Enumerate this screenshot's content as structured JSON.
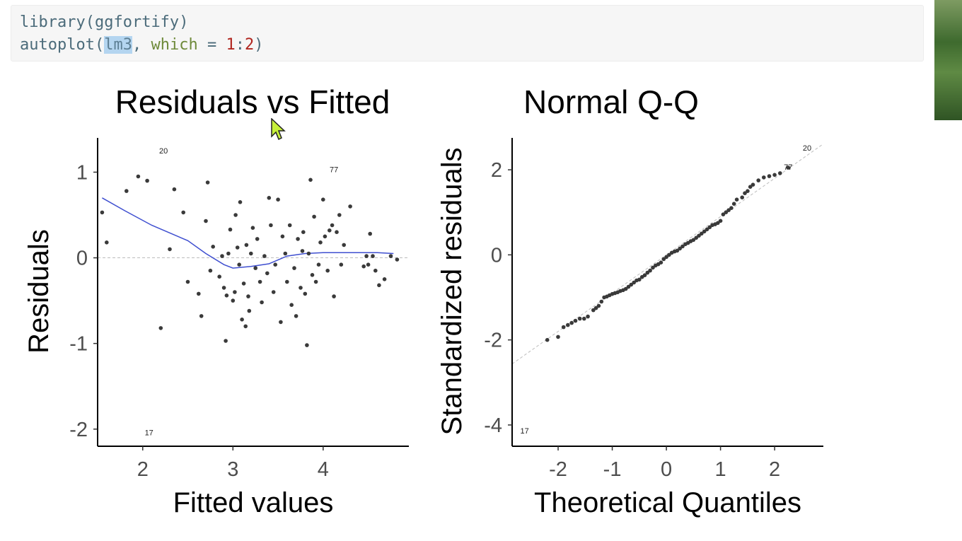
{
  "code": {
    "line1": {
      "func": "library",
      "open": "(",
      "arg": "ggfortify",
      "close": ")"
    },
    "line2": {
      "func": "autoplot",
      "open": "(",
      "arg": "lm3",
      "sep": ", ",
      "kw": "which",
      "eq": " = ",
      "n1": "1",
      "colon": ":",
      "n2": "2",
      "close": ")"
    }
  },
  "colors": {
    "points": "#3a3a3a",
    "smooth": "#3f4fd0",
    "refline": "#bdbdbd",
    "code_bg": "#f6f6f6"
  },
  "chart_data": [
    {
      "type": "scatter",
      "title": "Residuals vs Fitted",
      "xlabel": "Fitted values",
      "ylabel": "Residuals",
      "xlim": [
        1.5,
        4.95
      ],
      "ylim": [
        -2.2,
        1.4
      ],
      "xticks": [
        2,
        3,
        4
      ],
      "yticks": [
        -2,
        -1,
        0,
        1
      ],
      "grid": false,
      "hline": 0,
      "points": [
        [
          1.55,
          0.53
        ],
        [
          1.6,
          0.18
        ],
        [
          1.82,
          0.78
        ],
        [
          1.95,
          0.95
        ],
        [
          2.05,
          0.9
        ],
        [
          2.2,
          -0.82
        ],
        [
          2.3,
          0.1
        ],
        [
          2.35,
          0.8
        ],
        [
          2.45,
          0.53
        ],
        [
          2.5,
          -0.28
        ],
        [
          2.62,
          -0.42
        ],
        [
          2.65,
          -0.68
        ],
        [
          2.7,
          0.43
        ],
        [
          2.72,
          0.88
        ],
        [
          2.75,
          -0.15
        ],
        [
          2.78,
          0.13
        ],
        [
          2.85,
          -0.22
        ],
        [
          2.88,
          0.02
        ],
        [
          2.9,
          -0.35
        ],
        [
          2.92,
          -0.97
        ],
        [
          2.93,
          -0.44
        ],
        [
          2.95,
          0.05
        ],
        [
          2.97,
          0.33
        ],
        [
          3.0,
          -0.5
        ],
        [
          3.02,
          -0.4
        ],
        [
          3.03,
          0.5
        ],
        [
          3.05,
          0.12
        ],
        [
          3.07,
          -0.08
        ],
        [
          3.08,
          0.65
        ],
        [
          3.1,
          -0.72
        ],
        [
          3.12,
          -0.3
        ],
        [
          3.14,
          -0.8
        ],
        [
          3.15,
          0.15
        ],
        [
          3.17,
          -0.45
        ],
        [
          3.18,
          -0.62
        ],
        [
          3.2,
          0.05
        ],
        [
          3.22,
          0.35
        ],
        [
          3.25,
          -0.12
        ],
        [
          3.27,
          0.22
        ],
        [
          3.3,
          -0.28
        ],
        [
          3.32,
          -0.52
        ],
        [
          3.35,
          0.02
        ],
        [
          3.38,
          -0.18
        ],
        [
          3.4,
          0.7
        ],
        [
          3.42,
          0.38
        ],
        [
          3.45,
          -0.4
        ],
        [
          3.47,
          -0.08
        ],
        [
          3.5,
          0.68
        ],
        [
          3.53,
          -0.75
        ],
        [
          3.55,
          0.25
        ],
        [
          3.58,
          0.05
        ],
        [
          3.6,
          -0.28
        ],
        [
          3.63,
          0.38
        ],
        [
          3.65,
          -0.55
        ],
        [
          3.68,
          -0.12
        ],
        [
          3.7,
          -0.68
        ],
        [
          3.72,
          0.22
        ],
        [
          3.75,
          -0.35
        ],
        [
          3.77,
          0.08
        ],
        [
          3.78,
          0.3
        ],
        [
          3.8,
          -0.42
        ],
        [
          3.82,
          -1.02
        ],
        [
          3.84,
          0.05
        ],
        [
          3.86,
          0.91
        ],
        [
          3.88,
          -0.2
        ],
        [
          3.9,
          0.48
        ],
        [
          3.92,
          -0.28
        ],
        [
          3.95,
          -0.08
        ],
        [
          3.97,
          0.18
        ],
        [
          4.0,
          0.68
        ],
        [
          4.02,
          0.25
        ],
        [
          4.05,
          -0.15
        ],
        [
          4.07,
          0.32
        ],
        [
          4.1,
          0.38
        ],
        [
          4.12,
          -0.45
        ],
        [
          4.15,
          0.3
        ],
        [
          4.18,
          0.5
        ],
        [
          4.2,
          -0.08
        ],
        [
          4.23,
          0.15
        ],
        [
          4.3,
          0.6
        ],
        [
          4.45,
          -0.1
        ],
        [
          4.48,
          0.02
        ],
        [
          4.5,
          -0.08
        ],
        [
          4.52,
          0.28
        ],
        [
          4.55,
          0.02
        ],
        [
          4.58,
          -0.15
        ],
        [
          4.62,
          -0.32
        ],
        [
          4.68,
          -0.25
        ],
        [
          4.75,
          0.02
        ],
        [
          4.82,
          -0.02
        ]
      ],
      "smooth": [
        [
          1.55,
          0.7
        ],
        [
          1.8,
          0.55
        ],
        [
          2.1,
          0.38
        ],
        [
          2.5,
          0.2
        ],
        [
          2.7,
          0.05
        ],
        [
          2.9,
          -0.08
        ],
        [
          3.0,
          -0.12
        ],
        [
          3.2,
          -0.1
        ],
        [
          3.4,
          -0.07
        ],
        [
          3.6,
          0.02
        ],
        [
          3.8,
          0.05
        ],
        [
          4.0,
          0.06
        ],
        [
          4.3,
          0.06
        ],
        [
          4.6,
          0.06
        ],
        [
          4.78,
          0.05
        ]
      ],
      "labels": [
        {
          "text": "20",
          "x": 2.23,
          "y": 1.22
        },
        {
          "text": "77",
          "x": 4.12,
          "y": 1.0
        },
        {
          "text": "17",
          "x": 2.07,
          "y": -2.07
        }
      ]
    },
    {
      "type": "scatter",
      "title": "Normal Q-Q",
      "xlabel": "Theoretical Quantiles",
      "ylabel": "Standardized residuals",
      "xlim": [
        -2.85,
        2.9
      ],
      "ylim": [
        -4.5,
        2.75
      ],
      "xticks": [
        -2,
        -1,
        0,
        1,
        2
      ],
      "yticks": [
        -4,
        -2,
        0,
        2
      ],
      "grid": false,
      "refline": {
        "slope": 0.9,
        "intercept": 0.0
      },
      "points": [
        [
          -2.2,
          -2.0
        ],
        [
          -2.0,
          -1.93
        ],
        [
          -1.9,
          -1.7
        ],
        [
          -1.82,
          -1.65
        ],
        [
          -1.75,
          -1.6
        ],
        [
          -1.68,
          -1.55
        ],
        [
          -1.6,
          -1.5
        ],
        [
          -1.52,
          -1.5
        ],
        [
          -1.45,
          -1.45
        ],
        [
          -1.35,
          -1.3
        ],
        [
          -1.3,
          -1.25
        ],
        [
          -1.25,
          -1.2
        ],
        [
          -1.2,
          -1.1
        ],
        [
          -1.15,
          -1.0
        ],
        [
          -1.1,
          -0.98
        ],
        [
          -1.05,
          -0.95
        ],
        [
          -1.0,
          -0.92
        ],
        [
          -0.95,
          -0.9
        ],
        [
          -0.9,
          -0.88
        ],
        [
          -0.85,
          -0.85
        ],
        [
          -0.8,
          -0.83
        ],
        [
          -0.75,
          -0.8
        ],
        [
          -0.7,
          -0.75
        ],
        [
          -0.65,
          -0.7
        ],
        [
          -0.6,
          -0.65
        ],
        [
          -0.55,
          -0.6
        ],
        [
          -0.5,
          -0.58
        ],
        [
          -0.45,
          -0.52
        ],
        [
          -0.4,
          -0.48
        ],
        [
          -0.35,
          -0.42
        ],
        [
          -0.3,
          -0.37
        ],
        [
          -0.25,
          -0.3
        ],
        [
          -0.2,
          -0.25
        ],
        [
          -0.15,
          -0.22
        ],
        [
          -0.1,
          -0.18
        ],
        [
          -0.05,
          -0.1
        ],
        [
          0.0,
          -0.05
        ],
        [
          0.05,
          0.0
        ],
        [
          0.1,
          0.05
        ],
        [
          0.15,
          0.08
        ],
        [
          0.2,
          0.1
        ],
        [
          0.25,
          0.15
        ],
        [
          0.3,
          0.2
        ],
        [
          0.35,
          0.25
        ],
        [
          0.4,
          0.28
        ],
        [
          0.45,
          0.32
        ],
        [
          0.5,
          0.35
        ],
        [
          0.55,
          0.4
        ],
        [
          0.6,
          0.45
        ],
        [
          0.65,
          0.5
        ],
        [
          0.7,
          0.55
        ],
        [
          0.75,
          0.6
        ],
        [
          0.8,
          0.65
        ],
        [
          0.85,
          0.7
        ],
        [
          0.9,
          0.72
        ],
        [
          0.95,
          0.75
        ],
        [
          1.0,
          0.8
        ],
        [
          1.05,
          0.95
        ],
        [
          1.1,
          1.0
        ],
        [
          1.15,
          1.05
        ],
        [
          1.2,
          1.1
        ],
        [
          1.25,
          1.2
        ],
        [
          1.3,
          1.3
        ],
        [
          1.4,
          1.35
        ],
        [
          1.45,
          1.45
        ],
        [
          1.5,
          1.5
        ],
        [
          1.55,
          1.6
        ],
        [
          1.6,
          1.65
        ],
        [
          1.7,
          1.75
        ],
        [
          1.8,
          1.82
        ],
        [
          1.9,
          1.85
        ],
        [
          2.0,
          1.88
        ],
        [
          2.1,
          1.92
        ],
        [
          2.25,
          2.05
        ]
      ],
      "labels": [
        {
          "text": "20",
          "x": 2.6,
          "y": 2.45
        },
        {
          "text": "77",
          "x": 2.25,
          "y": 2.0
        },
        {
          "text": "17",
          "x": -2.62,
          "y": -4.2
        }
      ]
    }
  ]
}
